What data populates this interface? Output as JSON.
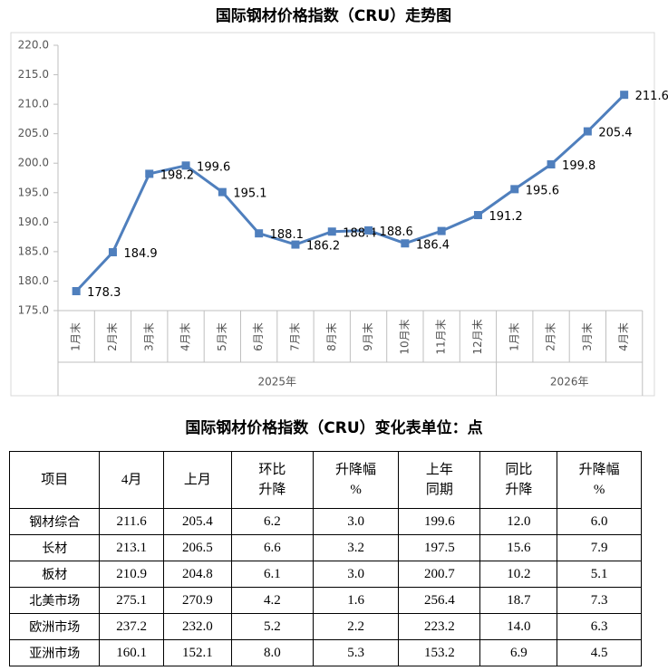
{
  "chart_data": {
    "type": "line",
    "title": "国际钢材价格指数（CRU）走势图",
    "groups": [
      {
        "name": "2025年",
        "categories": [
          "1月末",
          "2月末",
          "3月末",
          "4月末",
          "5月末",
          "6月末",
          "7月末",
          "8月末",
          "9月末",
          "10月末",
          "11月末",
          "12月末"
        ]
      },
      {
        "name": "2026年",
        "categories": [
          "1月末",
          "2月末",
          "3月末",
          "4月末"
        ]
      }
    ],
    "series": [
      {
        "name": "CRU",
        "color": "#4f7fbd",
        "values": [
          178.3,
          184.9,
          198.2,
          199.6,
          195.1,
          188.1,
          186.2,
          188.4,
          188.6,
          186.4,
          188.5,
          191.2,
          195.6,
          199.8,
          205.4,
          211.6
        ],
        "value_labels": [
          "178.3",
          "184.9",
          "198.2",
          "199.6",
          "195.1",
          "188.1",
          "186.2",
          "188.4",
          "188.6",
          "186.4",
          null,
          "191.2",
          "195.6",
          "199.8",
          "205.4",
          "211.6"
        ]
      }
    ],
    "ylim": [
      175,
      220
    ],
    "yticks": [
      {
        "value": 175,
        "label": "175.0"
      },
      {
        "value": 180,
        "label": "180.0"
      },
      {
        "value": 185,
        "label": "185.0"
      },
      {
        "value": 190,
        "label": "190.0"
      },
      {
        "value": 195,
        "label": "195.0"
      },
      {
        "value": 200,
        "label": "200.0"
      },
      {
        "value": 205,
        "label": "205.0"
      },
      {
        "value": 210,
        "label": "210.0"
      },
      {
        "value": 215,
        "label": "215.0"
      },
      {
        "value": 220,
        "label": "220.0"
      }
    ],
    "grid": false
  },
  "table": {
    "title": "国际钢材价格指数（CRU）变化表单位：点",
    "header": [
      [
        "项目"
      ],
      [
        "4月"
      ],
      [
        "上月"
      ],
      [
        "环比",
        "升降"
      ],
      [
        "升降幅",
        "%"
      ],
      [
        "上年",
        "同期"
      ],
      [
        "同比",
        "升降"
      ],
      [
        "升降幅",
        "%"
      ]
    ],
    "rows": [
      [
        "钢材综合",
        "211.6",
        "205.4",
        "6.2",
        "3.0",
        "199.6",
        "12.0",
        "6.0"
      ],
      [
        "长材",
        "213.1",
        "206.5",
        "6.6",
        "3.2",
        "197.5",
        "15.6",
        "7.9"
      ],
      [
        "板材",
        "210.9",
        "204.8",
        "6.1",
        "3.0",
        "200.7",
        "10.2",
        "5.1"
      ],
      [
        "北美市场",
        "275.1",
        "270.9",
        "4.2",
        "1.6",
        "256.4",
        "18.7",
        "7.3"
      ],
      [
        "欧洲市场",
        "237.2",
        "232.0",
        "5.2",
        "2.2",
        "223.2",
        "14.0",
        "6.3"
      ],
      [
        "亚洲市场",
        "160.1",
        "152.1",
        "8.0",
        "5.3",
        "153.2",
        "6.9",
        "4.5"
      ]
    ]
  }
}
